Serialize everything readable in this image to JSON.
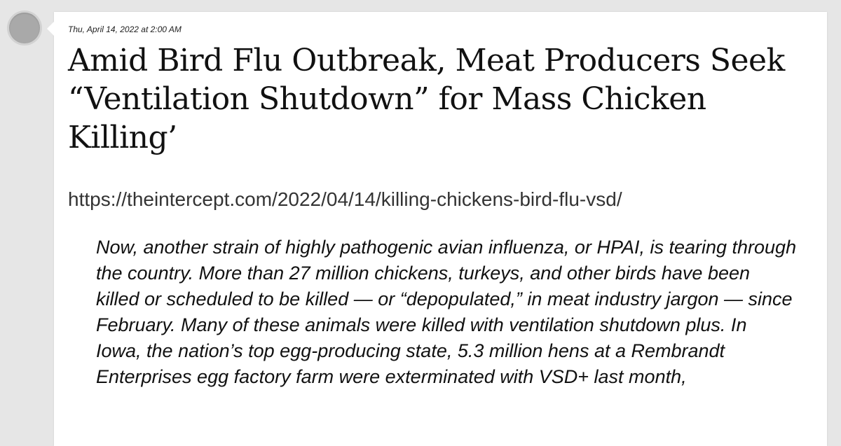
{
  "post": {
    "timestamp": "Thu, April 14, 2022 at 2:00 AM",
    "title": "Amid Bird Flu Outbreak, Meat Producers Seek “Ventilation Shutdown” for Mass Chicken Killing’",
    "url": "https://theintercept.com/2022/04/14/killing-chickens-bird-flu-vsd/",
    "quote": "Now, another strain of highly pathogenic avian influenza, or HPAI, is tearing through the country. More than 27 million chickens, turkeys, and other birds have been killed or scheduled to be killed — or “depopulated,” in meat industry jargon — since February. Many of these animals were killed with ventilation shutdown plus. In Iowa, the nation’s top egg-producing state, 5.3 million hens at a Rembrandt Enterprises egg factory farm were exterminated with VSD+ last month,"
  },
  "author": {
    "avatar_icon": "user-avatar-placeholder"
  }
}
